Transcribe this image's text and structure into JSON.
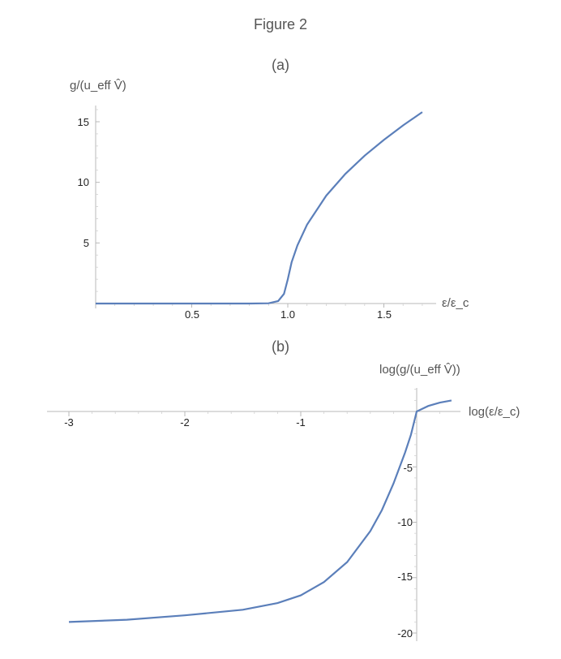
{
  "figure": {
    "title": "Figure 2"
  },
  "chart_data": [
    {
      "panel": "(a)",
      "type": "line",
      "xlabel": "ε/ε_c",
      "ylabel": "g/(u_eff V̂)",
      "xlim": [
        0,
        1.72
      ],
      "ylim": [
        0,
        16.5
      ],
      "x_ticks": [
        "0.5",
        "1.0",
        "1.5"
      ],
      "y_ticks": [
        "5",
        "10",
        "15"
      ],
      "series": [
        {
          "x": [
            0.0,
            0.2,
            0.4,
            0.6,
            0.8,
            0.9,
            0.95,
            0.98,
            1.0,
            1.02,
            1.05,
            1.1,
            1.2,
            1.3,
            1.4,
            1.5,
            1.6,
            1.7
          ],
          "y": [
            0.0,
            0.0,
            0.0,
            0.0,
            0.0,
            0.02,
            0.2,
            0.8,
            2.0,
            3.4,
            4.8,
            6.5,
            8.9,
            10.7,
            12.2,
            13.5,
            14.7,
            15.8
          ]
        }
      ]
    },
    {
      "panel": "(b)",
      "type": "line",
      "xlabel": "log(ε/ε_c)",
      "ylabel": "log(g/(u_eff V̂))",
      "xlim": [
        -3.05,
        0.3
      ],
      "ylim": [
        -20.3,
        2.0
      ],
      "x_ticks": [
        "-3",
        "-2",
        "-1"
      ],
      "y_ticks": [
        "-5",
        "-10",
        "-15",
        "-20"
      ],
      "series": [
        {
          "x": [
            -3.0,
            -2.5,
            -2.0,
            -1.5,
            -1.2,
            -1.0,
            -0.8,
            -0.6,
            -0.4,
            -0.3,
            -0.2,
            -0.1,
            -0.05,
            0.0,
            0.1,
            0.2,
            0.3
          ],
          "y": [
            -19.0,
            -18.8,
            -18.4,
            -17.9,
            -17.3,
            -16.6,
            -15.4,
            -13.6,
            -10.8,
            -8.9,
            -6.5,
            -3.7,
            -2.1,
            0.0,
            0.5,
            0.8,
            1.0
          ]
        }
      ]
    }
  ]
}
